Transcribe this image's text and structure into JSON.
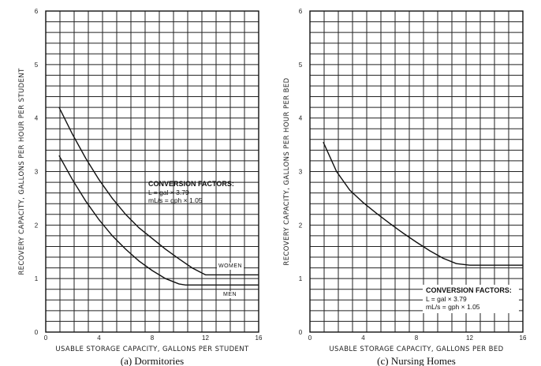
{
  "chart_data": [
    {
      "type": "line",
      "caption": "(a) Dormitories",
      "xlabel": "USABLE STORAGE CAPACITY, GALLONS PER STUDENT",
      "ylabel": "RECOVERY CAPACITY, GALLONS PER HOUR PER STUDENT",
      "xlim": [
        0,
        16
      ],
      "ylim": [
        0,
        6
      ],
      "x_ticks": [
        "0",
        "4",
        "8",
        "12",
        "16"
      ],
      "y_ticks": [
        "0",
        "1",
        "2",
        "3",
        "4",
        "5",
        "6"
      ],
      "grid": true,
      "annotation": {
        "title": "CONVERSION FACTORS:",
        "lines": [
          "L = gal × 3.79",
          "mL/s = gph × 1.05"
        ]
      },
      "series": [
        {
          "name": "WOMEN",
          "x": [
            1,
            2,
            3,
            4,
            5,
            6,
            7,
            8,
            9,
            10,
            11,
            12,
            12.5,
            16
          ],
          "y": [
            4.2,
            3.7,
            3.25,
            2.85,
            2.5,
            2.2,
            1.95,
            1.75,
            1.55,
            1.37,
            1.2,
            1.07,
            1.07,
            1.07
          ]
        },
        {
          "name": "MEN",
          "x": [
            1,
            2,
            3,
            4,
            5,
            6,
            7,
            8,
            9,
            10,
            10.5,
            16
          ],
          "y": [
            3.3,
            2.85,
            2.45,
            2.1,
            1.8,
            1.55,
            1.33,
            1.15,
            1.0,
            0.9,
            0.88,
            0.88
          ]
        }
      ]
    },
    {
      "type": "line",
      "caption": "(c) Nursing Homes",
      "xlabel": "USABLE STORAGE CAPACITY, GALLONS PER BED",
      "ylabel": "RECOVERY CAPACITY, GALLONS PER HOUR PER BED",
      "xlim": [
        0,
        16
      ],
      "ylim": [
        0,
        6
      ],
      "x_ticks": [
        "0",
        "4",
        "8",
        "12",
        "16"
      ],
      "y_ticks": [
        "0",
        "1",
        "2",
        "3",
        "4",
        "5",
        "6"
      ],
      "grid": true,
      "annotation": {
        "title": "CONVERSION FACTORS:",
        "lines": [
          "L = gal × 3.79",
          "mL/s = gph × 1.05"
        ]
      },
      "series": [
        {
          "name": "",
          "x": [
            1,
            2,
            3,
            4,
            5,
            6,
            7,
            8,
            9,
            10,
            11,
            12,
            16
          ],
          "y": [
            3.55,
            3.0,
            2.65,
            2.42,
            2.22,
            2.03,
            1.85,
            1.68,
            1.52,
            1.38,
            1.28,
            1.25,
            1.25
          ]
        }
      ]
    }
  ]
}
